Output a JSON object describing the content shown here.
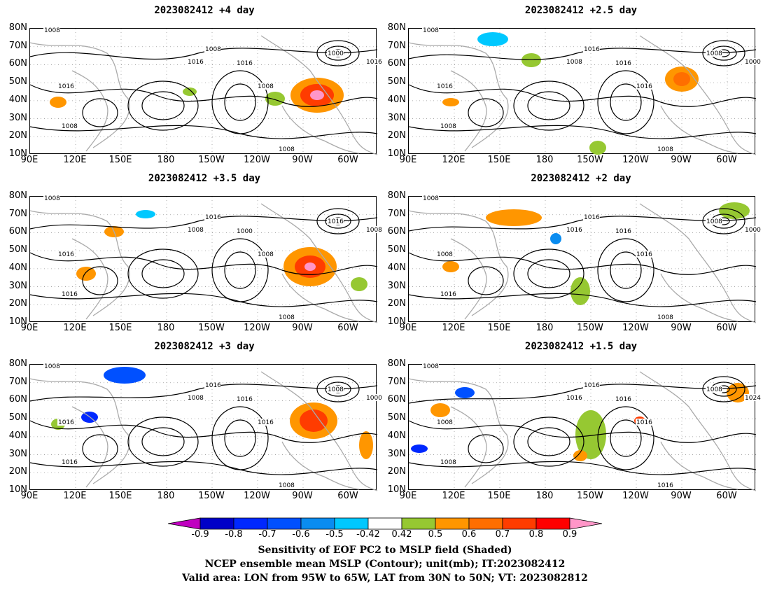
{
  "panels": [
    {
      "title": "2023082412 +4 day",
      "labels": [
        "1008",
        "1008",
        "1016",
        "1016",
        "1008",
        "1000",
        "1016",
        "1016",
        "1008",
        "1008"
      ]
    },
    {
      "title": "2023082412 +2.5 day",
      "labels": [
        "1008",
        "1016",
        "1008",
        "1016",
        "1016",
        "1008",
        "1000",
        "1016",
        "1008",
        "1008"
      ]
    },
    {
      "title": "2023082412 +3.5 day",
      "labels": [
        "1008",
        "1016",
        "1008",
        "1016",
        "1008",
        "1016",
        "1008",
        "1000",
        "1016",
        "1008"
      ]
    },
    {
      "title": "2023082412 +2 day",
      "labels": [
        "1008",
        "1016",
        "1016",
        "1008",
        "1016",
        "1008",
        "1000",
        "1016",
        "1016",
        "1008"
      ]
    },
    {
      "title": "2023082412 +3 day",
      "labels": [
        "1008",
        "1016",
        "1008",
        "1016",
        "1016",
        "1008",
        "1000",
        "1016",
        "1016",
        "1008"
      ]
    },
    {
      "title": "2023082412 +1.5 day",
      "labels": [
        "1008",
        "1016",
        "1016",
        "1008",
        "1016",
        "1008",
        "1024",
        "1016",
        "1008",
        "1016"
      ]
    }
  ],
  "lat_labels": [
    "80N",
    "70N",
    "60N",
    "50N",
    "40N",
    "30N",
    "20N",
    "10N"
  ],
  "lon_labels": [
    "90E",
    "120E",
    "150E",
    "180",
    "150W",
    "120W",
    "90W",
    "60W"
  ],
  "colorbar": {
    "labels": [
      "-0.9",
      "-0.8",
      "-0.7",
      "-0.6",
      "-0.5",
      "-0.42",
      "0.42",
      "0.5",
      "0.6",
      "0.7",
      "0.8",
      "0.9"
    ],
    "colors": [
      "#c000c0",
      "#0000c8",
      "#0028ff",
      "#0050ff",
      "#0a8cf0",
      "#00c8ff",
      "#ffffff",
      "#96c832",
      "#ff9600",
      "#ff6e00",
      "#ff3c00",
      "#ff0000",
      "#ff96c8"
    ]
  },
  "footer": {
    "line1": "Sensitivity of EOF PC2 to MSLP field (Shaded)",
    "line2": "NCEP ensemble mean MSLP (Contour); unit(mb); IT:2023082412",
    "line3": "Valid area: LON from 95W to 65W, LAT from 30N to 50N; VT: 2023082812"
  }
}
